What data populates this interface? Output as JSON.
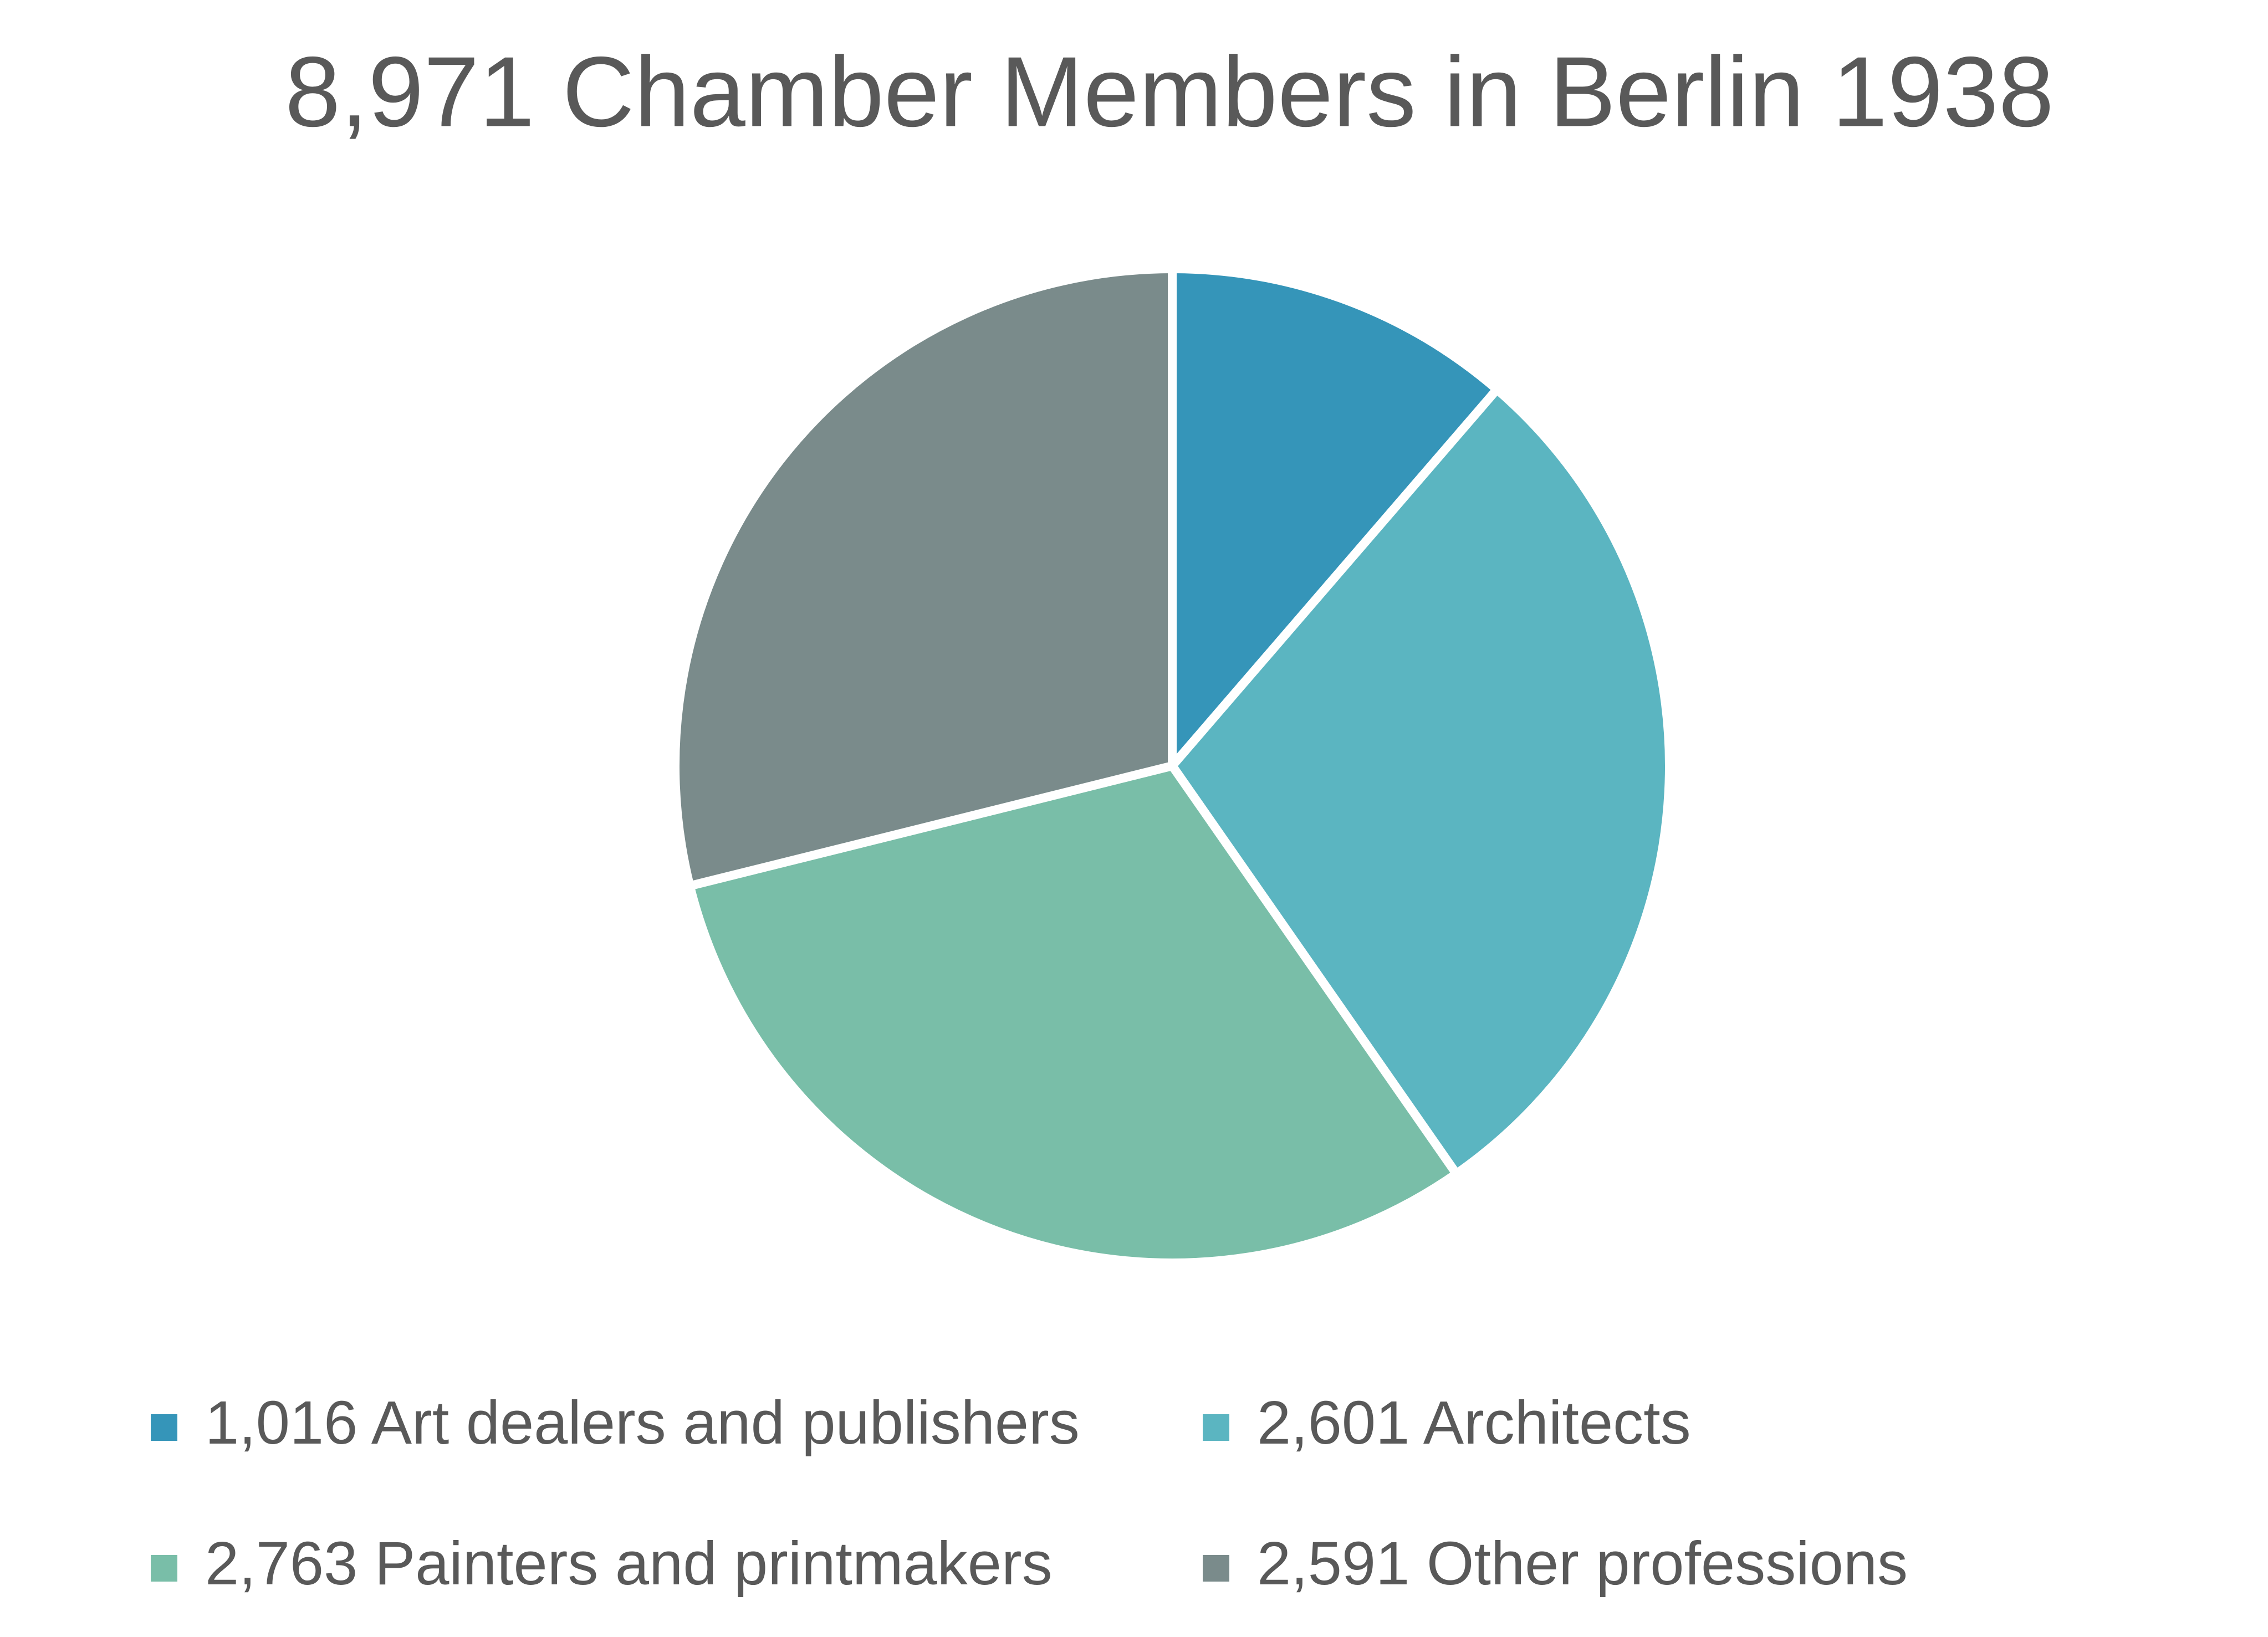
{
  "chart_data": {
    "type": "pie",
    "title": "8,971 Chamber Members in Berlin 1938",
    "categories": [
      "1,016 Art dealers and publishers",
      "2,601 Architects",
      "2,763 Painters and printmakers",
      "2,591 Other professions"
    ],
    "values": [
      1016,
      2601,
      2763,
      2591
    ],
    "colors": [
      "#3595b9",
      "#5bb5c1",
      "#79bea8",
      "#7a8b8b"
    ],
    "legend": "bottom"
  }
}
